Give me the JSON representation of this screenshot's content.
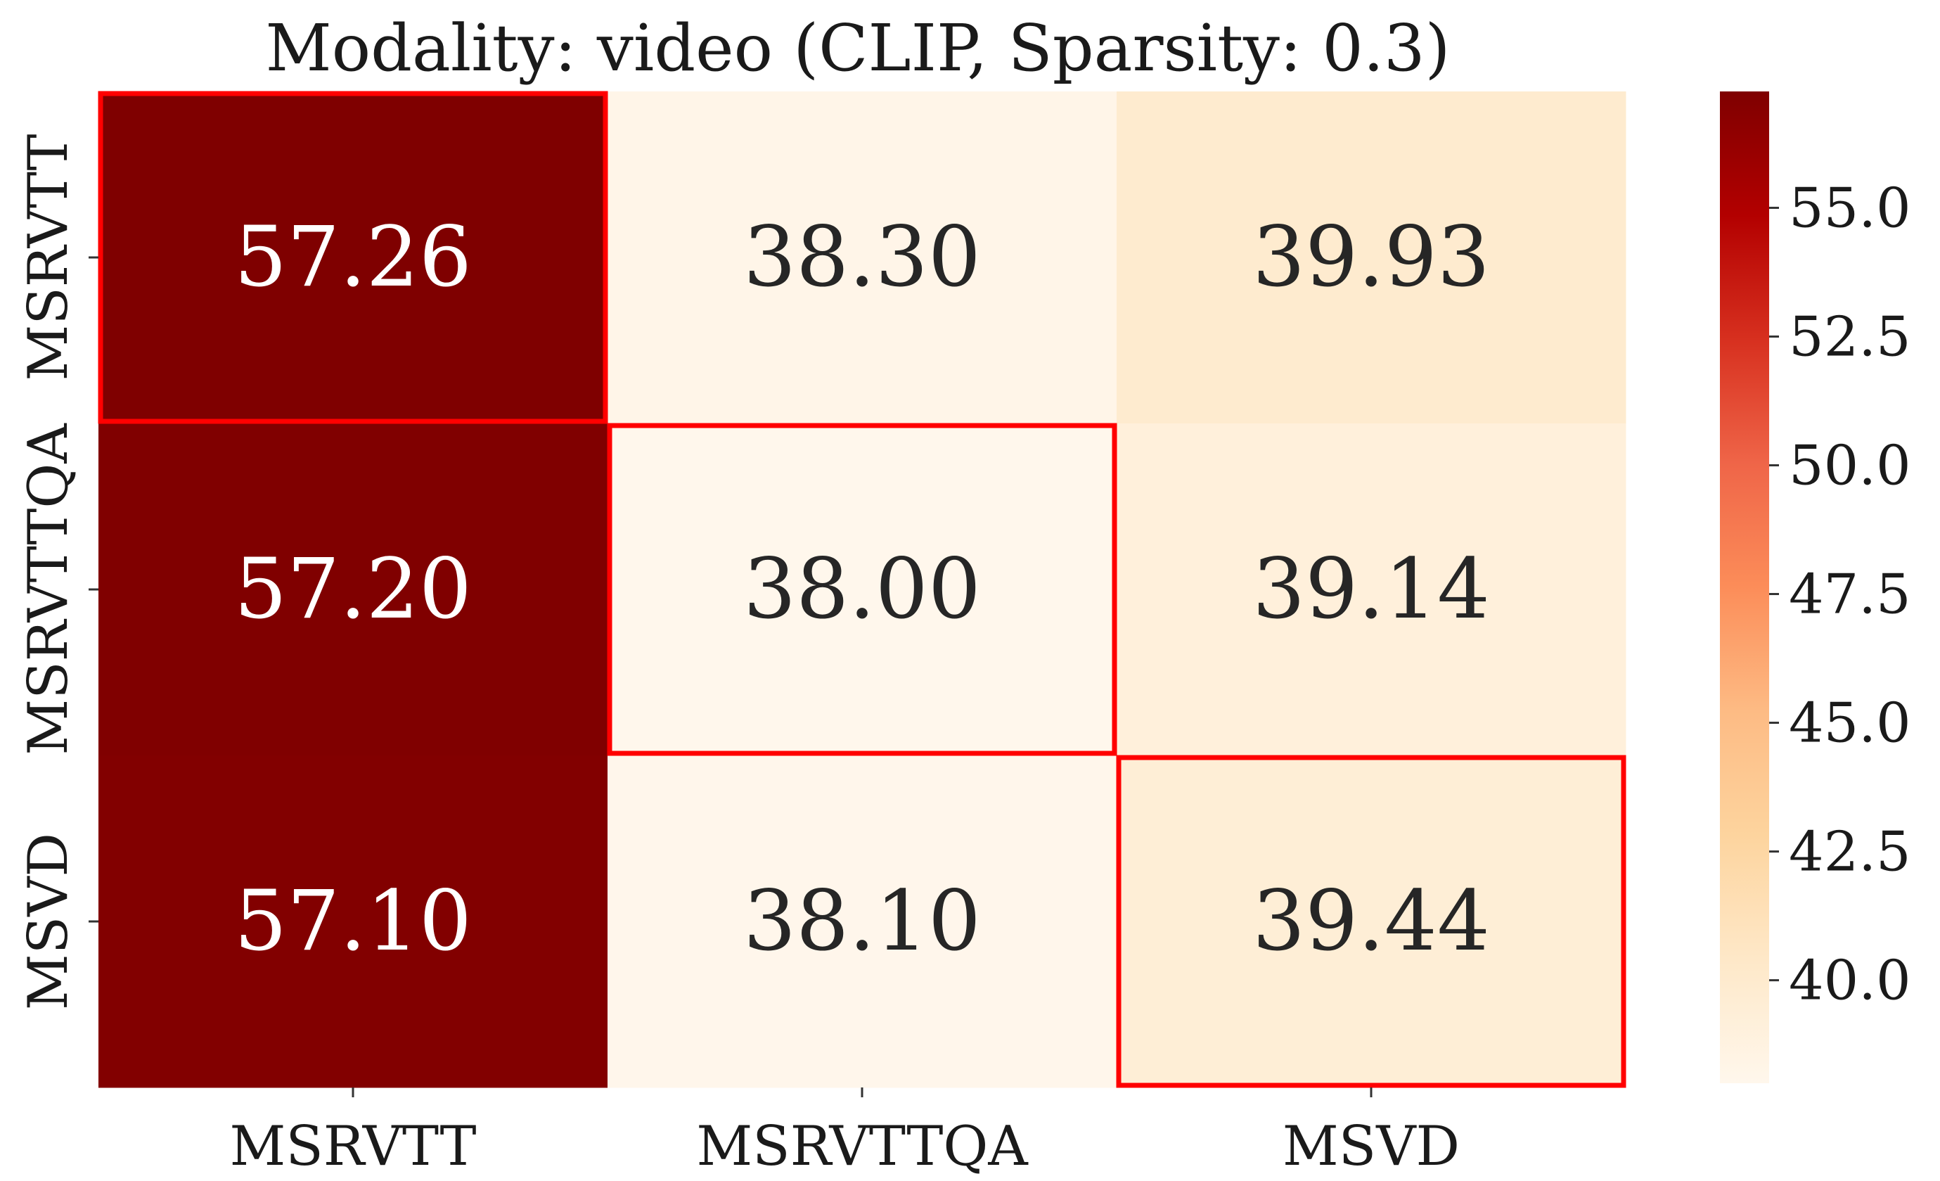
{
  "chart_data": {
    "type": "heatmap",
    "title": "Modality: video (CLIP, Sparsity: 0.3)",
    "xlabel": "",
    "ylabel": "",
    "x_categories": [
      "MSRVTT",
      "MSRVTTQA",
      "MSVD"
    ],
    "y_categories": [
      "MSRVTT",
      "MSRVTTQA",
      "MSVD"
    ],
    "values": [
      [
        57.26,
        38.3,
        39.93
      ],
      [
        57.2,
        38.0,
        39.14
      ],
      [
        57.1,
        38.1,
        39.44
      ]
    ],
    "value_labels": [
      [
        "57.26",
        "38.30",
        "39.93"
      ],
      [
        "57.20",
        "38.00",
        "39.14"
      ],
      [
        "57.10",
        "38.10",
        "39.44"
      ]
    ],
    "highlighted_diagonal": true,
    "highlight_color": "#ff0000",
    "colormap": "OrRd",
    "colorbar": {
      "vmin": 38.0,
      "vmax": 57.26,
      "ticks": [
        40.0,
        42.5,
        45.0,
        47.5,
        50.0,
        52.5,
        55.0
      ],
      "tick_labels": [
        "40.0",
        "42.5",
        "45.0",
        "47.5",
        "50.0",
        "52.5",
        "55.0"
      ]
    }
  }
}
